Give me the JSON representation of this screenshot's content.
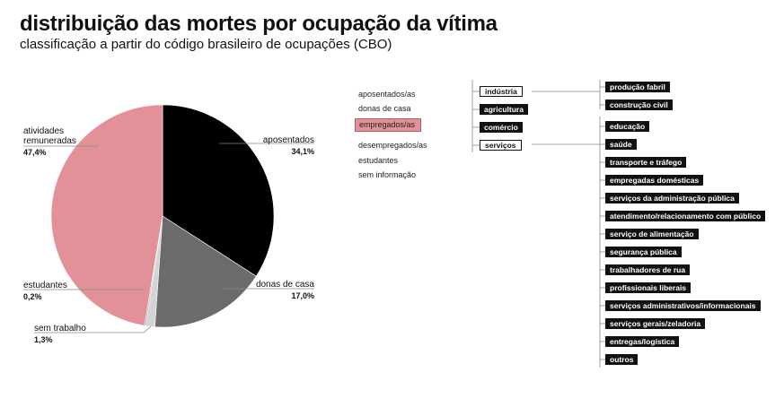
{
  "title": "distribuição das mortes por ocupação da vítima",
  "subtitle": "classificação a partir do código brasileiro de ocupações (CBO)",
  "chart_data": {
    "type": "pie",
    "title": "distribuição das mortes por ocupação da vítima",
    "subtitle": "classificação a partir do código brasileiro de ocupações (CBO)",
    "slices": [
      {
        "label": "aposentados",
        "value": 34.1,
        "display": "34,1%",
        "color": "#000000"
      },
      {
        "label": "donas de casa",
        "value": 17.0,
        "display": "17,0%",
        "color": "#6b6b6b"
      },
      {
        "label": "sem trabalho",
        "value": 1.3,
        "display": "1,3%",
        "color": "#d4d4d4"
      },
      {
        "label": "estudantes",
        "value": 0.2,
        "display": "0,2%",
        "color": "#9a9a9a"
      },
      {
        "label": "atividades\nremuneradas",
        "value": 47.4,
        "display": "47,4%",
        "color": "#e39198"
      }
    ]
  },
  "categories": [
    "aposentados/as",
    "donas de casa",
    "empregados/as",
    "desempregados/as",
    "estudantes",
    "sem informação"
  ],
  "selected_category": "empregados/as",
  "sectors": [
    "indústria",
    "agricultura",
    "comércio",
    "serviços"
  ],
  "industria_sub": [
    "produção fabril",
    "construção civil"
  ],
  "servicos_sub": [
    "educação",
    "saúde",
    "transporte e tráfego",
    "empregadas domésticas",
    "serviços da administração pública",
    "atendimento/relacionamento com público",
    "serviço de alimentação",
    "segurança pública",
    "trabalhadores de rua",
    "profissionais liberais",
    "serviços administrativos/informacionais",
    "serviços gerais/zeladoria",
    "entregas/logística",
    "outros"
  ],
  "colors": {
    "accent_pink": "#e39198",
    "tag_black": "#111111",
    "line_gray": "#888888"
  }
}
